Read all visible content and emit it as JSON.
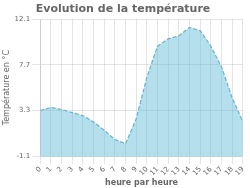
{
  "chart_data": {
    "type": "area",
    "title": "Evolution de la température",
    "xlabel": "heure par heure",
    "ylabel": "Température en °C",
    "x": [
      0,
      1,
      2,
      3,
      4,
      5,
      6,
      7,
      8,
      9,
      10,
      11,
      12,
      13,
      14,
      15,
      16,
      17,
      18,
      19
    ],
    "values": [
      3.3,
      3.6,
      3.4,
      3.1,
      2.8,
      2.2,
      1.4,
      0.5,
      0.1,
      2.5,
      6.5,
      9.5,
      10.2,
      10.5,
      11.3,
      11.0,
      9.5,
      7.5,
      4.5,
      2.2
    ],
    "xlim": [
      0,
      19
    ],
    "xticks": [
      0,
      1,
      2,
      3,
      4,
      5,
      6,
      7,
      8,
      9,
      10,
      11,
      12,
      13,
      14,
      15,
      16,
      17,
      18,
      19
    ],
    "ylim": [
      -1.1,
      12.1
    ],
    "yticks": [
      -1.1,
      3.3,
      7.7,
      12.1
    ],
    "grid": true,
    "color": "#5bb8d4",
    "line_style": "dashed"
  }
}
